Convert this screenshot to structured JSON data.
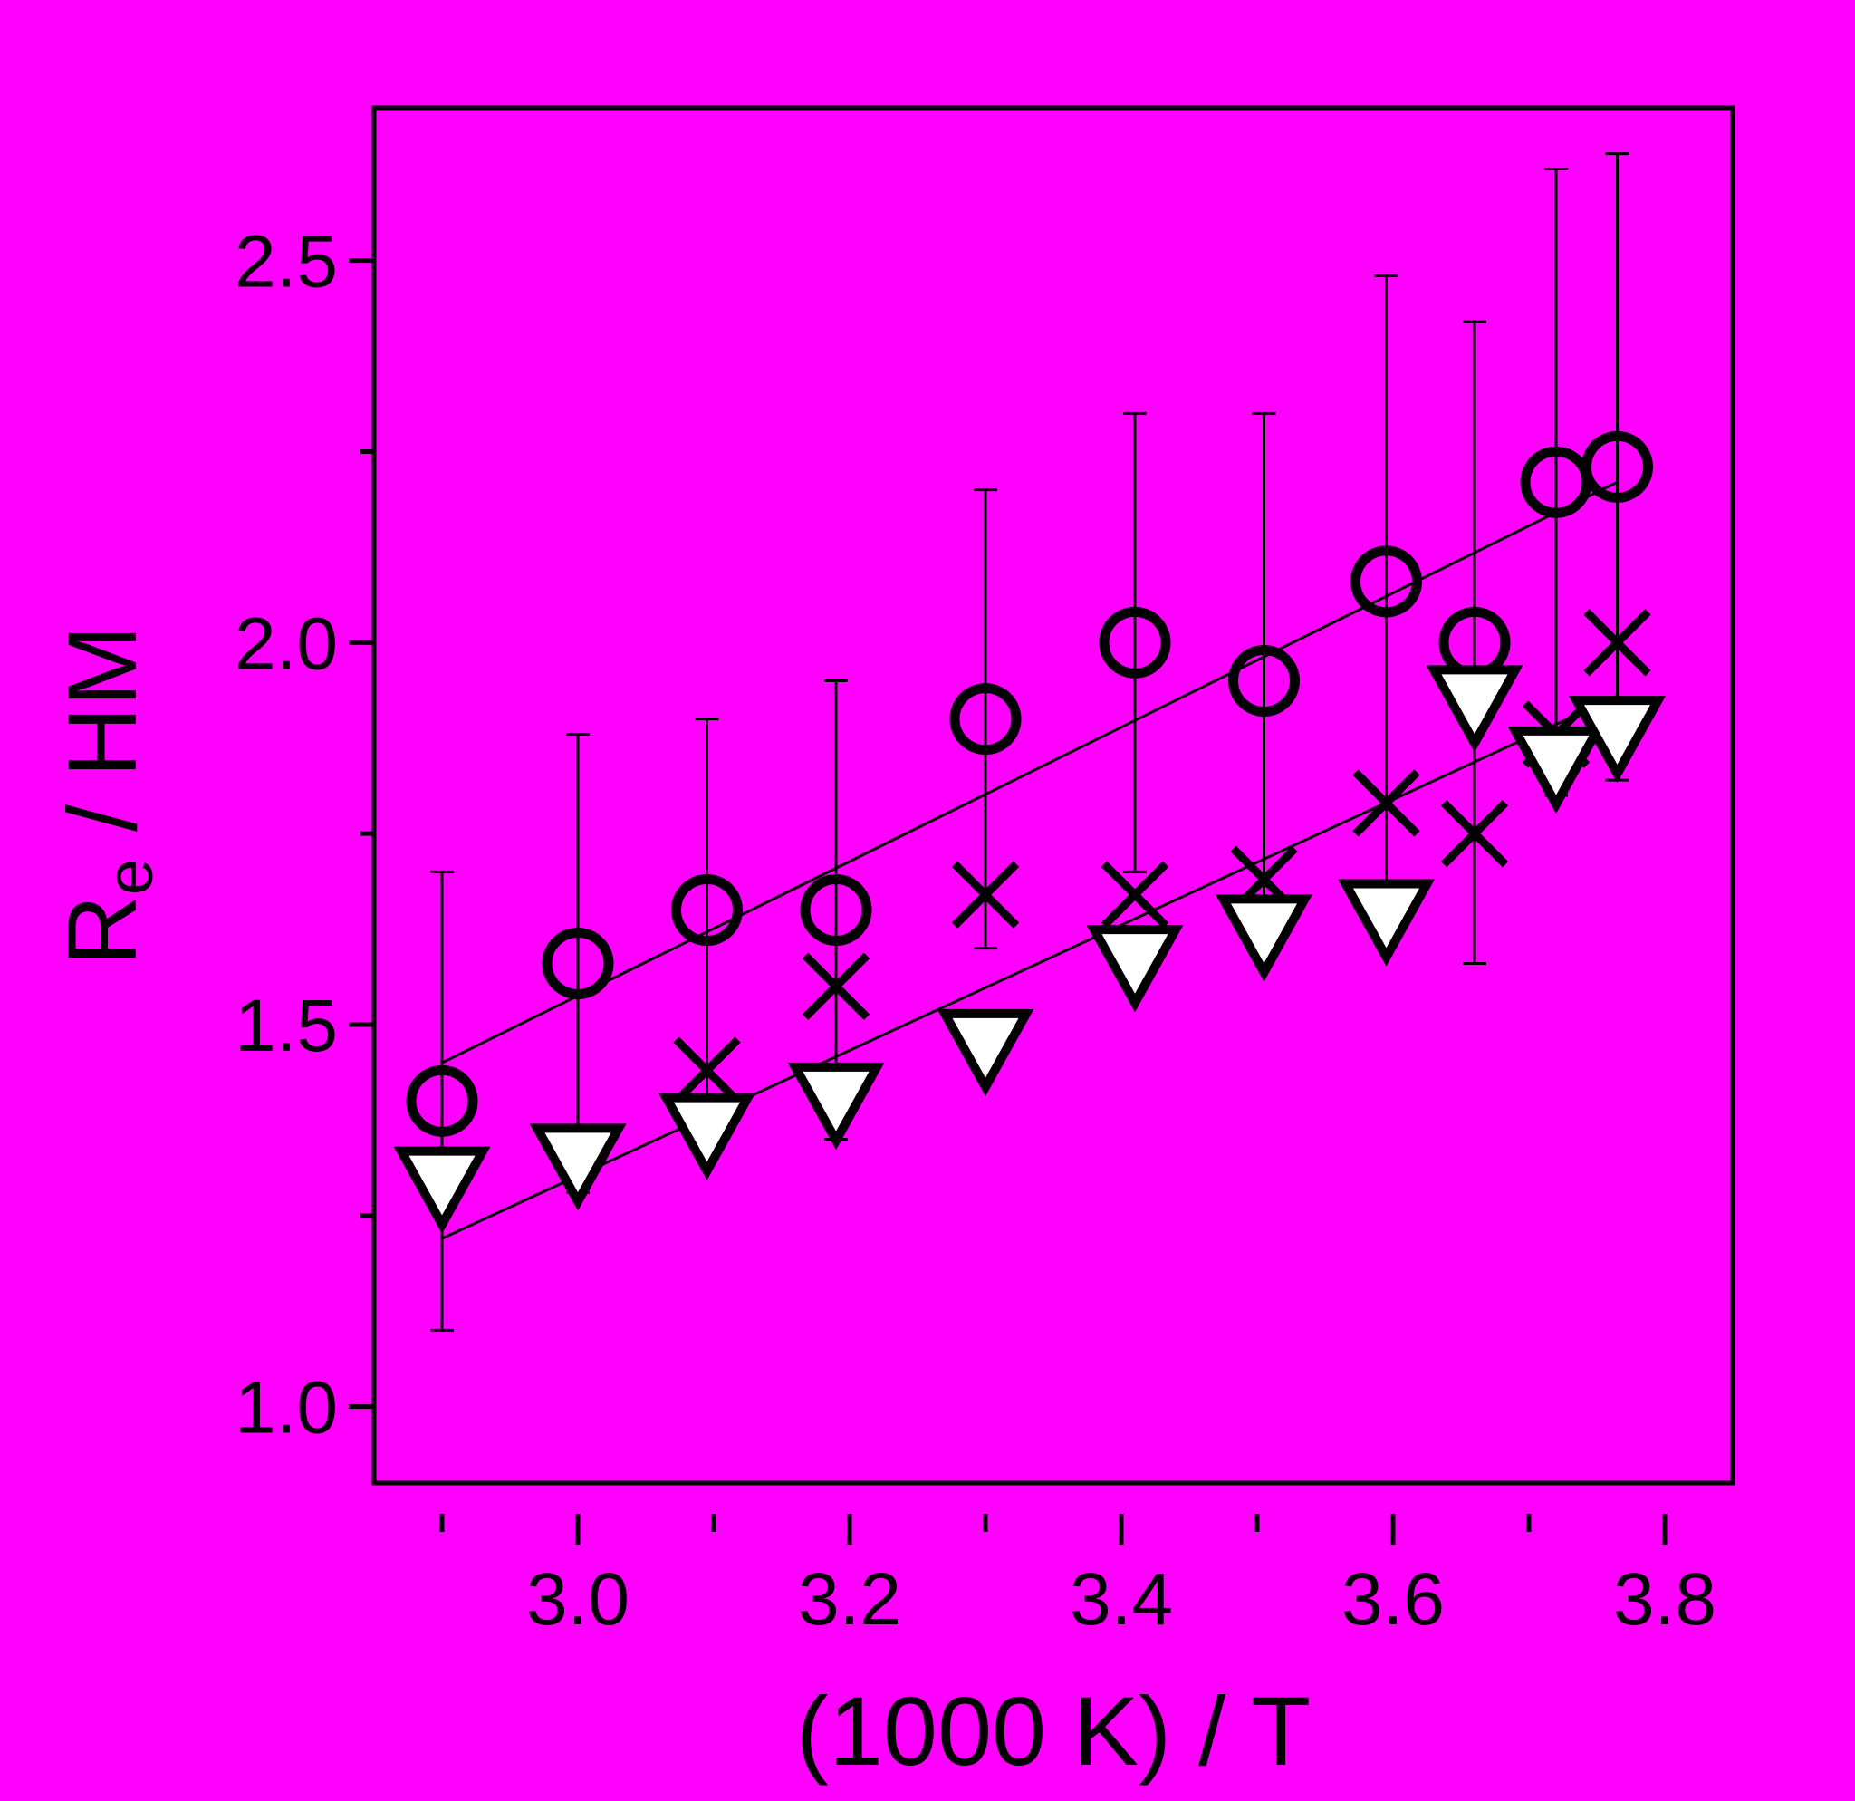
{
  "colors": {
    "background": "#ff00ff",
    "ink": "#000000",
    "marker_fill": "#ffffff"
  },
  "chart_data": {
    "type": "scatter",
    "title": "",
    "xlabel": "(1000 K) / T",
    "ylabel": {
      "main": "R",
      "sub": "e",
      "rest": " / HM"
    },
    "xlim": [
      2.85,
      3.85
    ],
    "ylim": [
      0.9,
      2.7
    ],
    "x_ticks": [
      {
        "value": 3.0,
        "label": "3.0"
      },
      {
        "value": 3.2,
        "label": "3.2"
      },
      {
        "value": 3.4,
        "label": "3.4"
      },
      {
        "value": 3.6,
        "label": "3.6"
      },
      {
        "value": 3.8,
        "label": "3.8"
      }
    ],
    "x_minor_ticks": [
      2.9,
      3.1,
      3.3,
      3.5,
      3.7
    ],
    "y_ticks": [
      {
        "value": 1.0,
        "label": "1.0"
      },
      {
        "value": 1.5,
        "label": "1.5"
      },
      {
        "value": 2.0,
        "label": "2.0"
      },
      {
        "value": 2.5,
        "label": "2.5"
      }
    ],
    "y_minor_ticks": [
      1.25,
      1.75,
      2.25
    ],
    "grid": false,
    "legend": "none",
    "series": [
      {
        "marker": "circle",
        "points": [
          {
            "x": 2.9,
            "y": 1.4,
            "err_hi": 1.7,
            "err_lo": 1.1
          },
          {
            "x": 3.0,
            "y": 1.58,
            "err_hi": 1.88,
            "err_lo": 1.28
          },
          {
            "x": 3.095,
            "y": 1.65,
            "err_hi": 1.9,
            "err_lo": 1.4
          },
          {
            "x": 3.19,
            "y": 1.65,
            "err_hi": 1.95,
            "err_lo": 1.35
          },
          {
            "x": 3.3,
            "y": 1.9,
            "err_hi": 2.2,
            "err_lo": 1.6
          },
          {
            "x": 3.41,
            "y": 2.0,
            "err_hi": 2.3,
            "err_lo": 1.7
          },
          {
            "x": 3.505,
            "y": 1.95,
            "err_hi": 2.3,
            "err_lo": 1.6
          },
          {
            "x": 3.595,
            "y": 2.08,
            "err_hi": 2.48,
            "err_lo": 1.68
          },
          {
            "x": 3.66,
            "y": 2.0,
            "err_hi": 2.42,
            "err_lo": 1.58
          },
          {
            "x": 3.72,
            "y": 2.21,
            "err_hi": 2.62,
            "err_lo": 1.8
          },
          {
            "x": 3.765,
            "y": 2.23,
            "err_hi": 2.64,
            "err_lo": 1.82
          }
        ],
        "fit": {
          "x": [
            2.9,
            3.765
          ],
          "y": [
            1.45,
            2.21
          ]
        }
      },
      {
        "marker": "x",
        "points": [
          {
            "x": 3.095,
            "y": 1.44
          },
          {
            "x": 3.19,
            "y": 1.55
          },
          {
            "x": 3.3,
            "y": 1.67
          },
          {
            "x": 3.41,
            "y": 1.67
          },
          {
            "x": 3.505,
            "y": 1.69
          },
          {
            "x": 3.595,
            "y": 1.79
          },
          {
            "x": 3.66,
            "y": 1.75
          },
          {
            "x": 3.72,
            "y": 1.88
          },
          {
            "x": 3.765,
            "y": 2.0
          }
        ]
      },
      {
        "marker": "triangle-down",
        "points": [
          {
            "x": 2.9,
            "y": 1.3
          },
          {
            "x": 3.0,
            "y": 1.33
          },
          {
            "x": 3.095,
            "y": 1.37
          },
          {
            "x": 3.19,
            "y": 1.41
          },
          {
            "x": 3.3,
            "y": 1.48
          },
          {
            "x": 3.41,
            "y": 1.59
          },
          {
            "x": 3.505,
            "y": 1.63
          },
          {
            "x": 3.595,
            "y": 1.65
          },
          {
            "x": 3.66,
            "y": 1.93
          },
          {
            "x": 3.72,
            "y": 1.85
          },
          {
            "x": 3.765,
            "y": 1.89
          }
        ],
        "fit": {
          "x": [
            2.9,
            3.765
          ],
          "y": [
            1.22,
            1.93
          ]
        }
      }
    ]
  }
}
